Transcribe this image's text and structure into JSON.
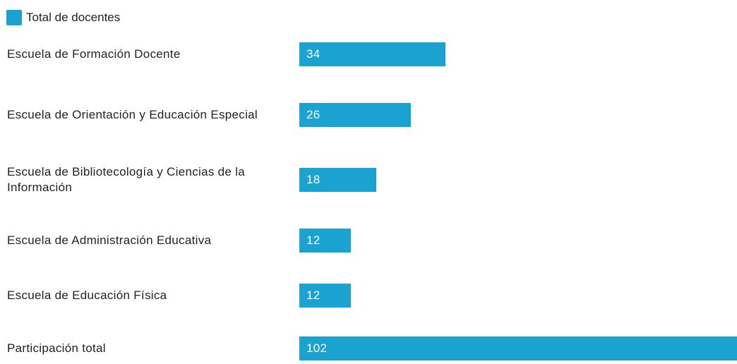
{
  "chart_data": {
    "type": "bar",
    "orientation": "horizontal",
    "categories": [
      "Escuela de Formación Docente",
      "Escuela de Orientación y Educación Especial",
      "Escuela de Bibliotecología y Ciencias de la Información",
      "Escuela de Administración Educativa",
      "Escuela de Educación Física",
      "Participación total"
    ],
    "series": [
      {
        "name": "Total de docentes",
        "color": "#1aa3d1",
        "values": [
          34,
          26,
          18,
          12,
          12,
          102
        ]
      }
    ]
  }
}
